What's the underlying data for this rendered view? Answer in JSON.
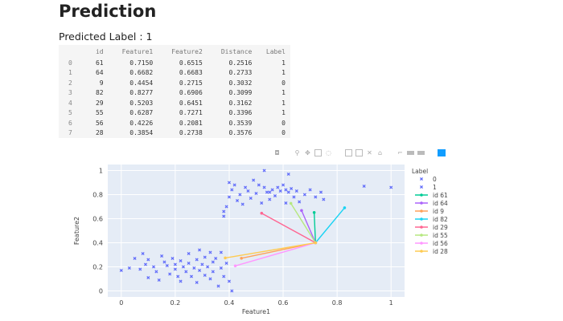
{
  "page": {
    "title": "Prediction",
    "predicted_label": "Predicted Label : 1"
  },
  "table": {
    "columns": [
      "id",
      "Feature1",
      "Feature2",
      "Distance",
      "Label"
    ],
    "rows": [
      {
        "index": "0",
        "id": "61",
        "f1": "0.7150",
        "f2": "0.6515",
        "dist": "0.2516",
        "label": "1"
      },
      {
        "index": "1",
        "id": "64",
        "f1": "0.6682",
        "f2": "0.6683",
        "dist": "0.2733",
        "label": "1"
      },
      {
        "index": "2",
        "id": "9",
        "f1": "0.4454",
        "f2": "0.2715",
        "dist": "0.3032",
        "label": "0"
      },
      {
        "index": "3",
        "id": "82",
        "f1": "0.8277",
        "f2": "0.6906",
        "dist": "0.3099",
        "label": "1"
      },
      {
        "index": "4",
        "id": "29",
        "f1": "0.5203",
        "f2": "0.6451",
        "dist": "0.3162",
        "label": "1"
      },
      {
        "index": "5",
        "id": "55",
        "f1": "0.6287",
        "f2": "0.7271",
        "dist": "0.3396",
        "label": "1"
      },
      {
        "index": "6",
        "id": "56",
        "f1": "0.4226",
        "f2": "0.2081",
        "dist": "0.3539",
        "label": "0"
      },
      {
        "index": "7",
        "id": "28",
        "f1": "0.3854",
        "f2": "0.2738",
        "dist": "0.3576",
        "label": "0"
      }
    ]
  },
  "toolbar": {
    "icons": [
      "camera-icon",
      "zoom-icon",
      "pan-icon",
      "box-select-icon",
      "lasso-select-icon",
      "zoom-in-icon",
      "zoom-out-icon",
      "autoscale-icon",
      "reset-axes-icon",
      "spike-lines-icon",
      "hover-closest-icon",
      "hover-compare-icon",
      "plotly-logo-icon"
    ]
  },
  "chart_data": {
    "type": "scatter",
    "xlabel": "Feature1",
    "ylabel": "Feature2",
    "xlim": [
      -0.05,
      1.05
    ],
    "ylim": [
      -0.05,
      1.05
    ],
    "xticks": [
      0,
      0.2,
      0.4,
      0.6,
      0.8,
      1
    ],
    "yticks": [
      0,
      0.2,
      0.4,
      0.6,
      0.8,
      1
    ],
    "grid": true,
    "legend": {
      "title": "Label",
      "placement": "right"
    },
    "query_point": [
      0.72,
      0.4
    ],
    "series": [
      {
        "name": "0",
        "color": "#636efa",
        "marker": "x",
        "points": [
          [
            0.0,
            0.17
          ],
          [
            0.03,
            0.19
          ],
          [
            0.05,
            0.27
          ],
          [
            0.07,
            0.18
          ],
          [
            0.08,
            0.31
          ],
          [
            0.09,
            0.22
          ],
          [
            0.1,
            0.26
          ],
          [
            0.1,
            0.11
          ],
          [
            0.12,
            0.2
          ],
          [
            0.13,
            0.16
          ],
          [
            0.14,
            0.09
          ],
          [
            0.15,
            0.29
          ],
          [
            0.16,
            0.24
          ],
          [
            0.17,
            0.21
          ],
          [
            0.18,
            0.14
          ],
          [
            0.19,
            0.27
          ],
          [
            0.2,
            0.18
          ],
          [
            0.2,
            0.22
          ],
          [
            0.21,
            0.12
          ],
          [
            0.22,
            0.25
          ],
          [
            0.22,
            0.08
          ],
          [
            0.23,
            0.2
          ],
          [
            0.24,
            0.16
          ],
          [
            0.25,
            0.23
          ],
          [
            0.25,
            0.31
          ],
          [
            0.26,
            0.12
          ],
          [
            0.27,
            0.19
          ],
          [
            0.28,
            0.26
          ],
          [
            0.28,
            0.07
          ],
          [
            0.29,
            0.17
          ],
          [
            0.29,
            0.34
          ],
          [
            0.3,
            0.22
          ],
          [
            0.31,
            0.13
          ],
          [
            0.31,
            0.28
          ],
          [
            0.32,
            0.2
          ],
          [
            0.33,
            0.1
          ],
          [
            0.34,
            0.16
          ],
          [
            0.34,
            0.24
          ],
          [
            0.35,
            0.27
          ],
          [
            0.36,
            0.04
          ],
          [
            0.37,
            0.19
          ],
          [
            0.37,
            0.32
          ],
          [
            0.38,
            0.12
          ],
          [
            0.39,
            0.23
          ],
          [
            0.4,
            0.08
          ],
          [
            0.41,
            0.0
          ],
          [
            0.33,
            0.32
          ]
        ]
      },
      {
        "name": "1",
        "color": "#636efa",
        "marker": "x",
        "points": [
          [
            0.38,
            0.62
          ],
          [
            0.38,
            0.66
          ],
          [
            0.39,
            0.7
          ],
          [
            0.4,
            0.78
          ],
          [
            0.41,
            0.84
          ],
          [
            0.42,
            0.88
          ],
          [
            0.43,
            0.75
          ],
          [
            0.44,
            0.8
          ],
          [
            0.45,
            0.72
          ],
          [
            0.46,
            0.86
          ],
          [
            0.47,
            0.83
          ],
          [
            0.48,
            0.77
          ],
          [
            0.49,
            0.92
          ],
          [
            0.5,
            0.81
          ],
          [
            0.51,
            0.88
          ],
          [
            0.52,
            0.73
          ],
          [
            0.53,
            0.86
          ],
          [
            0.54,
            0.82
          ],
          [
            0.55,
            0.76
          ],
          [
            0.56,
            0.84
          ],
          [
            0.57,
            0.79
          ],
          [
            0.58,
            0.86
          ],
          [
            0.59,
            0.83
          ],
          [
            0.6,
            0.88
          ],
          [
            0.61,
            0.73
          ],
          [
            0.62,
            0.82
          ],
          [
            0.63,
            0.85
          ],
          [
            0.64,
            0.78
          ],
          [
            0.65,
            0.83
          ],
          [
            0.66,
            0.74
          ],
          [
            0.68,
            0.8
          ],
          [
            0.7,
            0.84
          ],
          [
            0.72,
            0.78
          ],
          [
            0.74,
            0.82
          ],
          [
            0.75,
            0.76
          ],
          [
            0.53,
            1.0
          ],
          [
            0.62,
            0.97
          ],
          [
            0.9,
            0.87
          ],
          [
            1.0,
            0.86
          ],
          [
            0.4,
            0.9
          ],
          [
            0.55,
            0.82
          ],
          [
            0.61,
            0.84
          ]
        ]
      }
    ],
    "neighbors": [
      {
        "name": "id 61",
        "color": "#00cc96",
        "point": [
          0.715,
          0.6515
        ]
      },
      {
        "name": "id 64",
        "color": "#ab63fa",
        "point": [
          0.6682,
          0.6683
        ]
      },
      {
        "name": "id 9",
        "color": "#ffa15a",
        "point": [
          0.4454,
          0.2715
        ]
      },
      {
        "name": "id 82",
        "color": "#19d3f3",
        "point": [
          0.8277,
          0.6906
        ]
      },
      {
        "name": "id 29",
        "color": "#ff6692",
        "point": [
          0.5203,
          0.6451
        ]
      },
      {
        "name": "id 55",
        "color": "#b6e880",
        "point": [
          0.6287,
          0.7271
        ]
      },
      {
        "name": "id 56",
        "color": "#ff97ff",
        "point": [
          0.4226,
          0.2081
        ]
      },
      {
        "name": "id 28",
        "color": "#fecb52",
        "point": [
          0.3854,
          0.2738
        ]
      }
    ]
  }
}
